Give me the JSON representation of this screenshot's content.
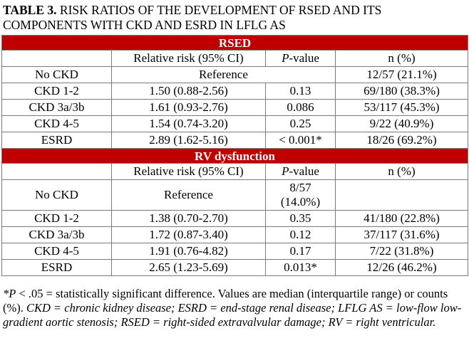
{
  "title": {
    "bold_prefix": "TABLE 3.",
    "text": " RISK RATIOS OF THE DEVELOPMENT OF RSED AND ITS COMPONENTS WITH CKD AND ESRD IN LFLG AS"
  },
  "sections": [
    {
      "heading": "RSED",
      "headers": [
        "",
        "Relative risk (95% CI)",
        "-value",
        "n (%)"
      ],
      "header_p_italic": "P",
      "rows": [
        {
          "label": "No CKD",
          "rr": "Reference",
          "p": "",
          "n": "12/57 (21.1%)",
          "merged": true
        },
        {
          "label": "CKD 1-2",
          "rr": "1.50 (0.88-2.56)",
          "p": "0.13",
          "n": "69/180 (38.3%)"
        },
        {
          "label": "CKD 3a/3b",
          "rr": "1.61 (0.93-2.76)",
          "p": "0.086",
          "n": "53/117 (45.3%)"
        },
        {
          "label": "CKD 4-5",
          "rr": "1.54 (0.74-3.20)",
          "p": "0.25",
          "n": "9/22 (40.9%)"
        },
        {
          "label": "ESRD",
          "rr": "2.89 (1.62-5.16)",
          "p": "< 0.001*",
          "n": "18/26 (69.2%)"
        }
      ]
    },
    {
      "heading": "RV dysfunction",
      "headers": [
        "",
        "Relative risk (95% CI)",
        "-value",
        "n (%)"
      ],
      "header_p_italic": "P",
      "rows": [
        {
          "label": "No CKD",
          "rr": "Reference",
          "p_line1": "8/57",
          "p_line2": "(14.0%)",
          "n": ""
        },
        {
          "label": "CKD 1-2",
          "rr": "1.38 (0.70-2.70)",
          "p": "0.35",
          "n": "41/180 (22.8%)"
        },
        {
          "label": "CKD 3a/3b",
          "rr": "1.72 (0.87-3.40)",
          "p": "0.12",
          "n": "37/117 (31.6%)"
        },
        {
          "label": "CKD 4-5",
          "rr": "1.91 (0.76-4.82)",
          "p": "0.17",
          "n": "7/22 (31.8%)"
        },
        {
          "label": "ESRD",
          "rr": "2.65 (1.23-5.69)",
          "p": "0.013*",
          "n": "12/26 (46.2%)"
        }
      ]
    }
  ],
  "footnote": {
    "star_p": "*P",
    "plain": " < .05 = statistically significant difference. Values are median (interquartile range) or counts (%). ",
    "italic": "CKD = chronic kidney disease; ESRD = end-stage renal disease; LFLG AS = low-flow low-gradient aortic stenosis; RSED = right-sided extravalvular damage; RV = right ventricular."
  },
  "colors": {
    "section_header_bg": "#c00000",
    "section_header_fg": "#ffffff",
    "border": "#7a7a7a"
  }
}
